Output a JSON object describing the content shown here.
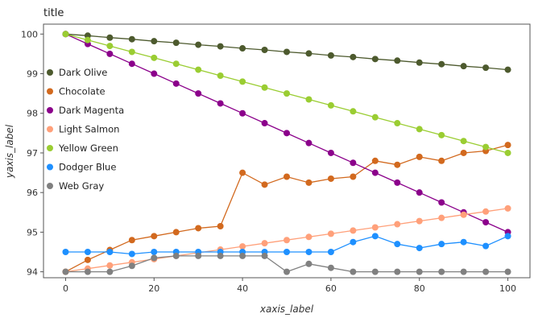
{
  "chart_data": {
    "type": "line",
    "title": "title",
    "xlabel": "xaxis_label",
    "ylabel": "yaxis_label",
    "xlim": [
      -5,
      105
    ],
    "ylim": [
      93.85,
      100.25
    ],
    "x_ticks": [
      0,
      20,
      40,
      60,
      80,
      100
    ],
    "y_ticks": [
      94,
      95,
      96,
      97,
      98,
      99,
      100
    ],
    "grid": false,
    "legend_position": "left",
    "x": [
      0,
      5,
      10,
      15,
      20,
      25,
      30,
      35,
      40,
      45,
      50,
      55,
      60,
      65,
      70,
      75,
      80,
      85,
      90,
      95,
      100
    ],
    "series": [
      {
        "name": "Dark Olive",
        "color": "#4d5a2e",
        "values": [
          100.0,
          99.96,
          99.91,
          99.87,
          99.82,
          99.78,
          99.73,
          99.69,
          99.64,
          99.6,
          99.55,
          99.51,
          99.46,
          99.42,
          99.37,
          99.33,
          99.28,
          99.24,
          99.19,
          99.15,
          99.1
        ]
      },
      {
        "name": "Chocolate",
        "color": "#d2691e",
        "values": [
          94.0,
          94.3,
          94.55,
          94.8,
          94.9,
          95.0,
          95.1,
          95.15,
          96.5,
          96.2,
          96.4,
          96.25,
          96.35,
          96.4,
          96.8,
          96.7,
          96.9,
          96.8,
          97.0,
          97.05,
          97.2
        ]
      },
      {
        "name": "Dark Magenta",
        "color": "#8b008b",
        "values": [
          100.0,
          99.75,
          99.5,
          99.25,
          99.0,
          98.75,
          98.5,
          98.25,
          98.0,
          97.75,
          97.5,
          97.25,
          97.0,
          96.75,
          96.5,
          96.25,
          96.0,
          95.75,
          95.5,
          95.25,
          95.0
        ]
      },
      {
        "name": "Light Salmon",
        "color": "#ffa07a",
        "values": [
          94.0,
          94.08,
          94.16,
          94.24,
          94.32,
          94.4,
          94.48,
          94.56,
          94.64,
          94.72,
          94.8,
          94.88,
          94.96,
          95.04,
          95.12,
          95.2,
          95.28,
          95.36,
          95.44,
          95.52,
          95.6
        ]
      },
      {
        "name": "Yellow Green",
        "color": "#9acd32",
        "values": [
          100.0,
          99.85,
          99.7,
          99.55,
          99.4,
          99.25,
          99.1,
          98.95,
          98.8,
          98.65,
          98.5,
          98.35,
          98.2,
          98.05,
          97.9,
          97.75,
          97.6,
          97.45,
          97.3,
          97.15,
          97.0
        ]
      },
      {
        "name": "Dodger Blue",
        "color": "#1e90ff",
        "values": [
          94.5,
          94.5,
          94.5,
          94.45,
          94.5,
          94.5,
          94.5,
          94.5,
          94.5,
          94.5,
          94.5,
          94.5,
          94.5,
          94.75,
          94.9,
          94.7,
          94.6,
          94.7,
          94.75,
          94.65,
          94.9
        ]
      },
      {
        "name": "Web Gray",
        "color": "#808080",
        "values": [
          94.0,
          94.0,
          94.0,
          94.15,
          94.35,
          94.4,
          94.4,
          94.4,
          94.4,
          94.4,
          94.0,
          94.2,
          94.1,
          94.0,
          94.0,
          94.0,
          94.0,
          94.0,
          94.0,
          94.0,
          94.0
        ]
      }
    ]
  }
}
